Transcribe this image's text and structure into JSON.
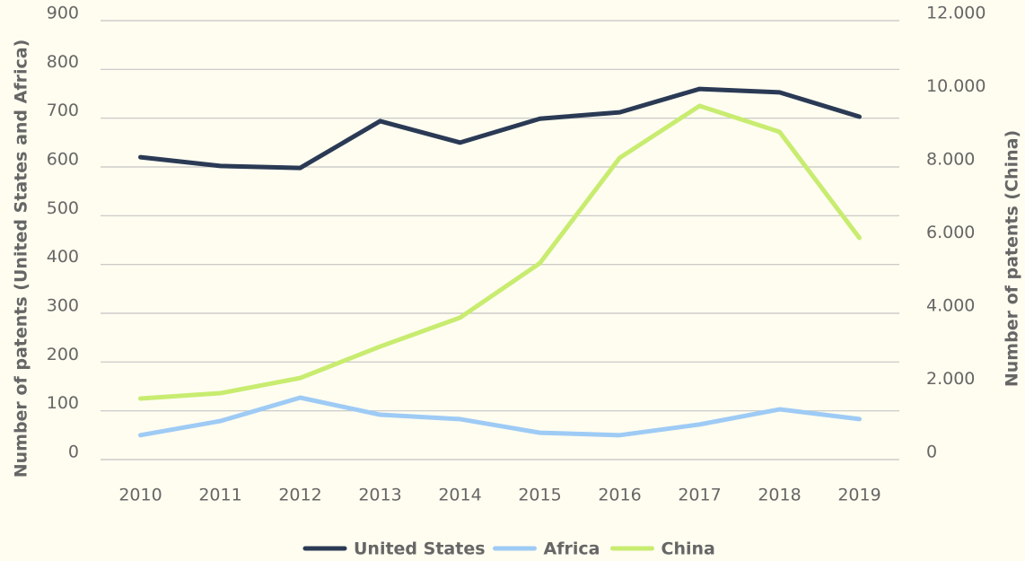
{
  "chart_data": {
    "type": "line",
    "categories": [
      "2010",
      "2011",
      "2012",
      "2013",
      "2014",
      "2015",
      "2016",
      "2017",
      "2018",
      "2019"
    ],
    "series": [
      {
        "name": "United States",
        "color": "#2a3a55",
        "values": [
          620,
          602,
          598,
          694,
          650,
          699,
          712,
          760,
          753,
          703
        ]
      },
      {
        "name": "Africa",
        "color": "#9ecbf5",
        "values": [
          50,
          79,
          127,
          92,
          83,
          55,
          50,
          72,
          103,
          83
        ]
      },
      {
        "name": "China",
        "color": "#c8ec70",
        "axis": "y2",
        "values": [
          1670,
          1815,
          2230,
          3090,
          3880,
          5370,
          8250,
          9670,
          8960,
          6060
        ]
      }
    ],
    "y_label": "Number of patents (United States and Africa)",
    "y2_label": "Number of patents (China)",
    "ylim": [
      0,
      900
    ],
    "yticks": [
      0,
      100,
      200,
      300,
      400,
      500,
      600,
      700,
      800,
      900
    ],
    "y2lim": [
      0,
      12000
    ],
    "y2ticks": [
      0,
      {
        "value": 2000,
        "label": "2.000"
      },
      {
        "value": 4000,
        "label": "4.000"
      },
      {
        "value": 6000,
        "label": "6.000"
      },
      {
        "value": 8000,
        "label": "8.000"
      },
      {
        "value": 10000,
        "label": "10.000"
      },
      {
        "value": 12000,
        "label": "12.000"
      }
    ],
    "grid": true,
    "legend": "bottom"
  }
}
